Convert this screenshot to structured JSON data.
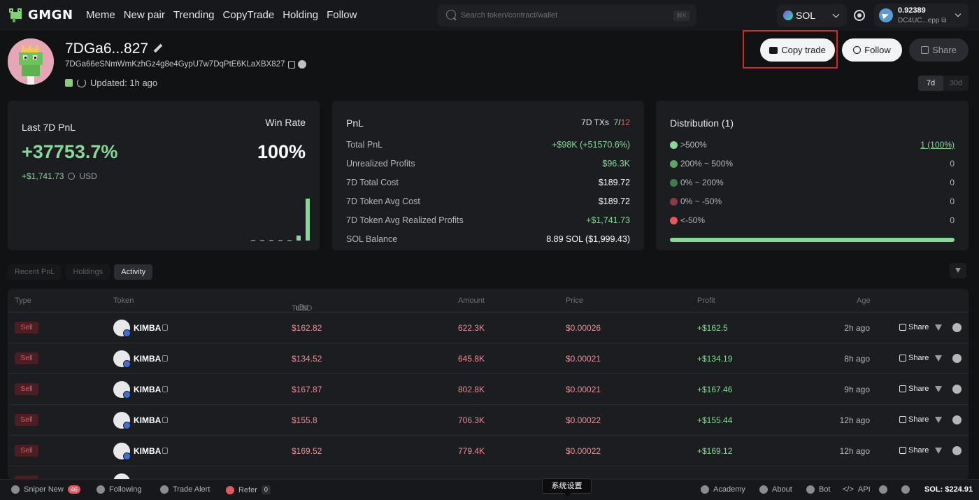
{
  "nav": {
    "logo": "GMGN",
    "links": [
      "Meme",
      "New pair",
      "Trending",
      "CopyTrade",
      "Holding",
      "Follow"
    ],
    "search_placeholder": "Search token/contract/wallet",
    "search_shortcut": "⌘K",
    "chain": "SOL",
    "wallet_balance": "0.92389",
    "wallet_addr": "DC4UC...epp ⧉"
  },
  "profile": {
    "name": "7DGa6...827",
    "address": "7DGa66eSNmWmKzhGz4g8e4GypU7w7DqPtE6KLaXBX827",
    "updated": "Updated: 1h ago",
    "copy_trade": "Copy trade",
    "follow": "Follow",
    "share": "Share",
    "period_7d": "7d",
    "period_30d": "30d"
  },
  "summary": {
    "title": "Last 7D PnL",
    "win_rate_label": "Win Rate",
    "pnl_pct": "+37753.7%",
    "win_rate": "100%",
    "pnl_usd": "+$1,741.73",
    "usd_label": "USD",
    "daily_pnl_bars": [
      0,
      0,
      0,
      0,
      0,
      0.12,
      1
    ]
  },
  "pnl_card": {
    "title": "PnL",
    "txs_label": "7D TXs",
    "txs_buy": "7",
    "txs_sep": "/",
    "txs_sell": "12",
    "rows": [
      {
        "label": "Total PnL",
        "value": "+$98K (+51570.6%)",
        "tone": "pos"
      },
      {
        "label": "Unrealized Profits",
        "value": "$96.3K",
        "tone": "pos"
      },
      {
        "label": "7D Total Cost",
        "value": "$189.72",
        "tone": "white"
      },
      {
        "label": "7D Token Avg Cost",
        "value": "$189.72",
        "tone": "white"
      },
      {
        "label": "7D Token Avg Realized Profits",
        "value": "+$1,741.73",
        "tone": "pos"
      },
      {
        "label": "SOL Balance",
        "value": "8.89 SOL ($1,999.43)",
        "tone": "white"
      }
    ]
  },
  "distribution": {
    "title": "Distribution (1)",
    "rows": [
      {
        "label": ">500%",
        "value": "1 (100%)",
        "color": "#86d996",
        "link": true
      },
      {
        "label": "200% ~ 500%",
        "value": "0",
        "color": "#58a867",
        "link": false
      },
      {
        "label": "0% ~ 200%",
        "value": "0",
        "color": "#3c7d4a",
        "link": false
      },
      {
        "label": "0% ~ -50%",
        "value": "0",
        "color": "#8a3a42",
        "link": false
      },
      {
        "label": "<-50%",
        "value": "0",
        "color": "#e5585e",
        "link": false
      }
    ]
  },
  "tabs": [
    "Recent PnL",
    "Holdings",
    "Activity"
  ],
  "table": {
    "headers": {
      "type": "Type",
      "token": "Token",
      "total": "Total",
      "total_unit": "USD",
      "amount": "Amount",
      "price": "Price",
      "profit": "Profit",
      "age": "Age"
    },
    "share_label": "Share",
    "rows": [
      {
        "type": "Sell",
        "token": "KIMBA",
        "total": "$162.82",
        "amount": "622.3K",
        "price": "$0.00026",
        "profit": "+$162.5",
        "age": "2h ago"
      },
      {
        "type": "Sell",
        "token": "KIMBA",
        "total": "$134.52",
        "amount": "645.8K",
        "price": "$0.00021",
        "profit": "+$134.19",
        "age": "8h ago"
      },
      {
        "type": "Sell",
        "token": "KIMBA",
        "total": "$167.87",
        "amount": "802.8K",
        "price": "$0.00021",
        "profit": "+$167.46",
        "age": "9h ago"
      },
      {
        "type": "Sell",
        "token": "KIMBA",
        "total": "$155.8",
        "amount": "706.3K",
        "price": "$0.00022",
        "profit": "+$155.44",
        "age": "12h ago"
      },
      {
        "type": "Sell",
        "token": "KIMBA",
        "total": "$169.52",
        "amount": "779.4K",
        "price": "$0.00022",
        "profit": "+$169.12",
        "age": "12h ago"
      }
    ]
  },
  "bottom": {
    "sniper": "Sniper New",
    "sniper_count": "46",
    "following": "Following",
    "trade_alert": "Trade Alert",
    "refer": "Refer",
    "refer_count": "0",
    "tooltip": "系统设置",
    "academy": "Academy",
    "about": "About",
    "bot": "Bot",
    "api": "API",
    "sol_price": "SOL: $224.91"
  },
  "colors": {
    "positive": "#86d996",
    "negative": "#e5585e",
    "highlight": "#e02424"
  }
}
